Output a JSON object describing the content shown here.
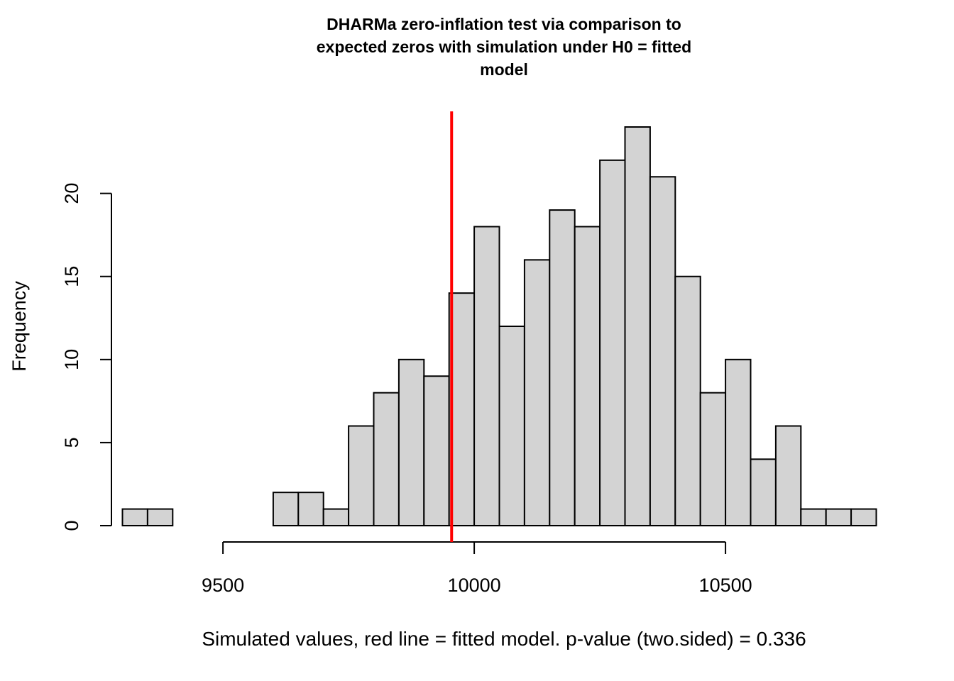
{
  "chart_data": {
    "type": "bar",
    "title_lines": [
      "DHARMa zero-inflation test via comparison to",
      "expected zeros with simulation under H0 = fitted",
      "model"
    ],
    "xlabel": "Simulated values, red line = fitted model. p-value (two.sided) = 0.336",
    "ylabel": "Frequency",
    "bin_width": 50,
    "bin_starts": [
      9300,
      9350,
      9400,
      9450,
      9500,
      9550,
      9600,
      9650,
      9700,
      9750,
      9800,
      9850,
      9900,
      9950,
      10000,
      10050,
      10100,
      10150,
      10200,
      10250,
      10300,
      10350,
      10400,
      10450,
      10500,
      10550,
      10600,
      10650,
      10700,
      10750
    ],
    "values": [
      1,
      1,
      0,
      0,
      0,
      0,
      2,
      2,
      1,
      6,
      8,
      10,
      9,
      14,
      18,
      12,
      16,
      19,
      18,
      22,
      24,
      21,
      15,
      8,
      10,
      4,
      6,
      1,
      1,
      1
    ],
    "x_ticks": [
      9500,
      10000,
      10500
    ],
    "y_ticks": [
      0,
      5,
      10,
      15,
      20
    ],
    "xlim": [
      9300,
      10800
    ],
    "ylim": [
      0,
      24
    ],
    "observed_value": 9955,
    "observed_line_color": "#ff0000",
    "bar_fill": "#d3d3d3",
    "grid": false
  }
}
